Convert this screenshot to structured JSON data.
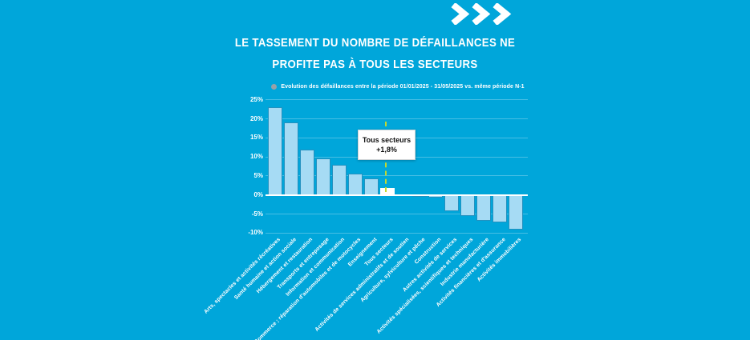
{
  "logo": {
    "marks": ">>>"
  },
  "title": {
    "line1": "LE TASSEMENT DU NOMBRE DE DÉFAILLANCES NE",
    "line2": "PROFITE PAS À TOUS LES SECTEURS"
  },
  "legend": {
    "marker": "circle-icon",
    "label": "Evolution des défaillances entre la période 01/01/2025 - 31/05/2025 vs. même période N-1"
  },
  "annotation": {
    "title": "Tous secteurs",
    "value": "+1,8%"
  },
  "colors": {
    "bg": "#00a6da",
    "bar": "#a6dbf4",
    "barBorder": "#2391bf",
    "highlight": "#ffffff",
    "grid": "rgba(255,255,255,0.28)",
    "zeroLine": "#ffffff",
    "text": "#ffffff",
    "connector": "#c3d82e",
    "legendMarker": "#98a1a8",
    "calloutBg": "#ffffff",
    "calloutText": "#111111"
  },
  "chart_data": {
    "type": "bar",
    "title": "Le tassement du nombre de défaillances ne profite pas à tous les secteurs",
    "series_label": "Evolution des défaillances entre la période 01/01/2025 - 31/05/2025 vs. même période N-1",
    "categories": [
      "Arts, spectacles et activités récréatives",
      "Santé humaine et action sociale",
      "Hébergement et restauration",
      "Transports et entreposage",
      "Information et communication",
      "Commerce ; réparation d'automobiles et de motocycles",
      "Enseignement",
      "Tous secteurs",
      "Activités de services administratifs et de soutien",
      "Agriculture, sylviculture et pêche",
      "Construction",
      "Autres activités de services",
      "Activités spécialisées, scientifiques et techniques",
      "Industrie manufacturière",
      "Activités financières et d'assurance",
      "Activités immobilières"
    ],
    "values": [
      23,
      19,
      12,
      9.7,
      8,
      5.6,
      4.3,
      1.8,
      0,
      -0.5,
      -0.7,
      -4.2,
      -5.6,
      -6.8,
      -7.3,
      -9.2
    ],
    "unit": "%",
    "highlight_index": 7,
    "highlight_label": "Tous secteurs",
    "highlight_value_label": "+1,8%",
    "xlabel": "",
    "ylabel": "",
    "ylim": [
      -10,
      25
    ],
    "yticks": [
      25,
      20,
      15,
      10,
      5,
      0,
      -5,
      -10
    ],
    "ytick_labels": [
      "25%",
      "20%",
      "15%",
      "10%",
      "5%",
      "0%",
      "-5%",
      "-10%"
    ],
    "grid": true,
    "legend_position": "top"
  }
}
